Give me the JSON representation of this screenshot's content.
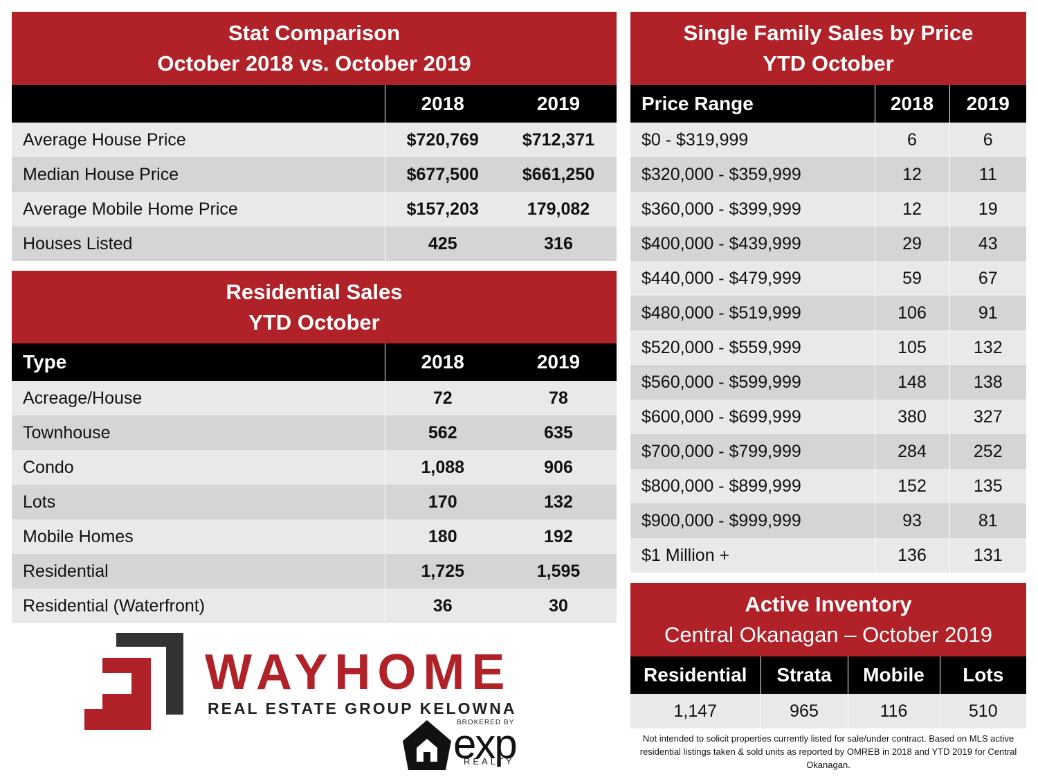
{
  "stat_comparison": {
    "title_line1": "Stat Comparison",
    "title_line2": "October 2018 vs. October 2019",
    "headers": [
      "",
      "2018",
      "2019"
    ],
    "rows": [
      {
        "label": "Average House Price",
        "v2018": "$720,769",
        "v2019": "$712,371"
      },
      {
        "label": "Median House Price",
        "v2018": "$677,500",
        "v2019": "$661,250"
      },
      {
        "label": "Average Mobile Home Price",
        "v2018": "$157,203",
        "v2019": "179,082"
      },
      {
        "label": "Houses Listed",
        "v2018": "425",
        "v2019": "316"
      }
    ]
  },
  "residential_sales": {
    "title_line1": "Residential Sales",
    "title_line2": "YTD October",
    "headers": [
      "Type",
      "2018",
      "2019"
    ],
    "rows": [
      {
        "label": "Acreage/House",
        "v2018": "72",
        "v2019": "78"
      },
      {
        "label": "Townhouse",
        "v2018": "562",
        "v2019": "635"
      },
      {
        "label": "Condo",
        "v2018": "1,088",
        "v2019": "906"
      },
      {
        "label": "Lots",
        "v2018": "170",
        "v2019": "132"
      },
      {
        "label": "Mobile Homes",
        "v2018": "180",
        "v2019": "192"
      },
      {
        "label": "Residential",
        "v2018": "1,725",
        "v2019": "1,595"
      },
      {
        "label": "Residential (Waterfront)",
        "v2018": "36",
        "v2019": "30"
      }
    ]
  },
  "single_family": {
    "title_line1": "Single Family Sales by Price",
    "title_line2": "YTD October",
    "headers": [
      "Price Range",
      "2018",
      "2019"
    ],
    "rows": [
      {
        "label": "$0 - $319,999",
        "v2018": "6",
        "v2019": "6"
      },
      {
        "label": "$320,000 - $359,999",
        "v2018": "12",
        "v2019": "11"
      },
      {
        "label": "$360,000 - $399,999",
        "v2018": "12",
        "v2019": "19"
      },
      {
        "label": "$400,000 - $439,999",
        "v2018": "29",
        "v2019": "43"
      },
      {
        "label": "$440,000 - $479,999",
        "v2018": "59",
        "v2019": "67"
      },
      {
        "label": "$480,000 - $519,999",
        "v2018": "106",
        "v2019": "91"
      },
      {
        "label": "$520,000 - $559,999",
        "v2018": "105",
        "v2019": "132"
      },
      {
        "label": "$560,000 - $599,999",
        "v2018": "148",
        "v2019": "138"
      },
      {
        "label": "$600,000 - $699,999",
        "v2018": "380",
        "v2019": "327"
      },
      {
        "label": "$700,000 - $799,999",
        "v2018": "284",
        "v2019": "252"
      },
      {
        "label": "$800,000 - $899,999",
        "v2018": "152",
        "v2019": "135"
      },
      {
        "label": "$900,000 - $999,999",
        "v2018": "93",
        "v2019": "81"
      },
      {
        "label": "$1 Million +",
        "v2018": "136",
        "v2019": "131"
      }
    ]
  },
  "active_inventory": {
    "title_line1": "Active Inventory",
    "title_line2": "Central Okanagan – October 2019",
    "headers": [
      "Residential",
      "Strata",
      "Mobile",
      "Lots"
    ],
    "values": [
      "1,147",
      "965",
      "116",
      "510"
    ]
  },
  "disclaimer": "Not intended to solicit properties currently listed for sale/under contract. Based on MLS active residential listings taken & sold units as reported by OMREB in 2018 and YTD 2019 for Central Okanagan.",
  "brand": {
    "wordmark": "WAYHOME",
    "tagline": "REAL ESTATE GROUP KELOWNA",
    "brokered": "BROKERED BY",
    "exp": "exp",
    "realty": "REALTY"
  },
  "colors": {
    "accent": "#b02128",
    "header_bg": "#000000",
    "row_light": "#e9e9e9",
    "row_dark": "#d5d5d5"
  }
}
